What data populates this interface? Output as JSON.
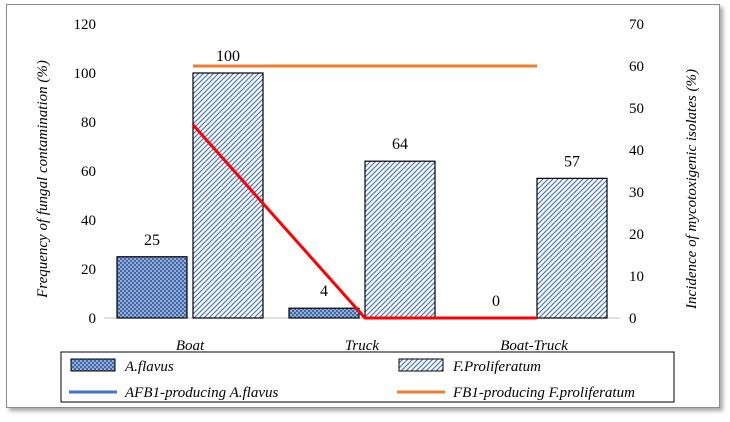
{
  "chart_data": {
    "type": "bar",
    "categories": [
      "Boat",
      "Truck",
      "Boat-Truck"
    ],
    "series": [
      {
        "name": "A.flavus",
        "axis": "left",
        "kind": "bar",
        "pattern": "crosshatch",
        "color": "#4472c4",
        "values": [
          25,
          4,
          0
        ]
      },
      {
        "name": "F.Proliferatum",
        "axis": "left",
        "kind": "bar",
        "pattern": "diagonal",
        "color": "#4472c4",
        "values": [
          100,
          64,
          57
        ]
      },
      {
        "name": "AFB1-producing A.flavus",
        "axis": "right",
        "kind": "line",
        "color": "#4472c4",
        "line_shown_color": "#ff0000",
        "values": [
          46,
          0,
          0
        ]
      },
      {
        "name": "FB1-producing F.proliferatum",
        "axis": "right",
        "kind": "line",
        "color": "#ed7d31",
        "values": [
          60,
          60,
          60
        ]
      }
    ],
    "data_labels": [
      "25",
      "100",
      "4",
      "64",
      "0",
      "57"
    ],
    "ylabel": "Frequency of fungal contamination (%)",
    "y2label": "Incidence of mycotoxigenic isolates (%)",
    "ylim": [
      0,
      120
    ],
    "y2lim": [
      0,
      70
    ],
    "yticks": [
      "0",
      "20",
      "40",
      "60",
      "80",
      "100",
      "120"
    ],
    "y2ticks": [
      "0",
      "10",
      "20",
      "30",
      "40",
      "50",
      "60",
      "70"
    ],
    "grid": false,
    "legend_position": "bottom"
  }
}
